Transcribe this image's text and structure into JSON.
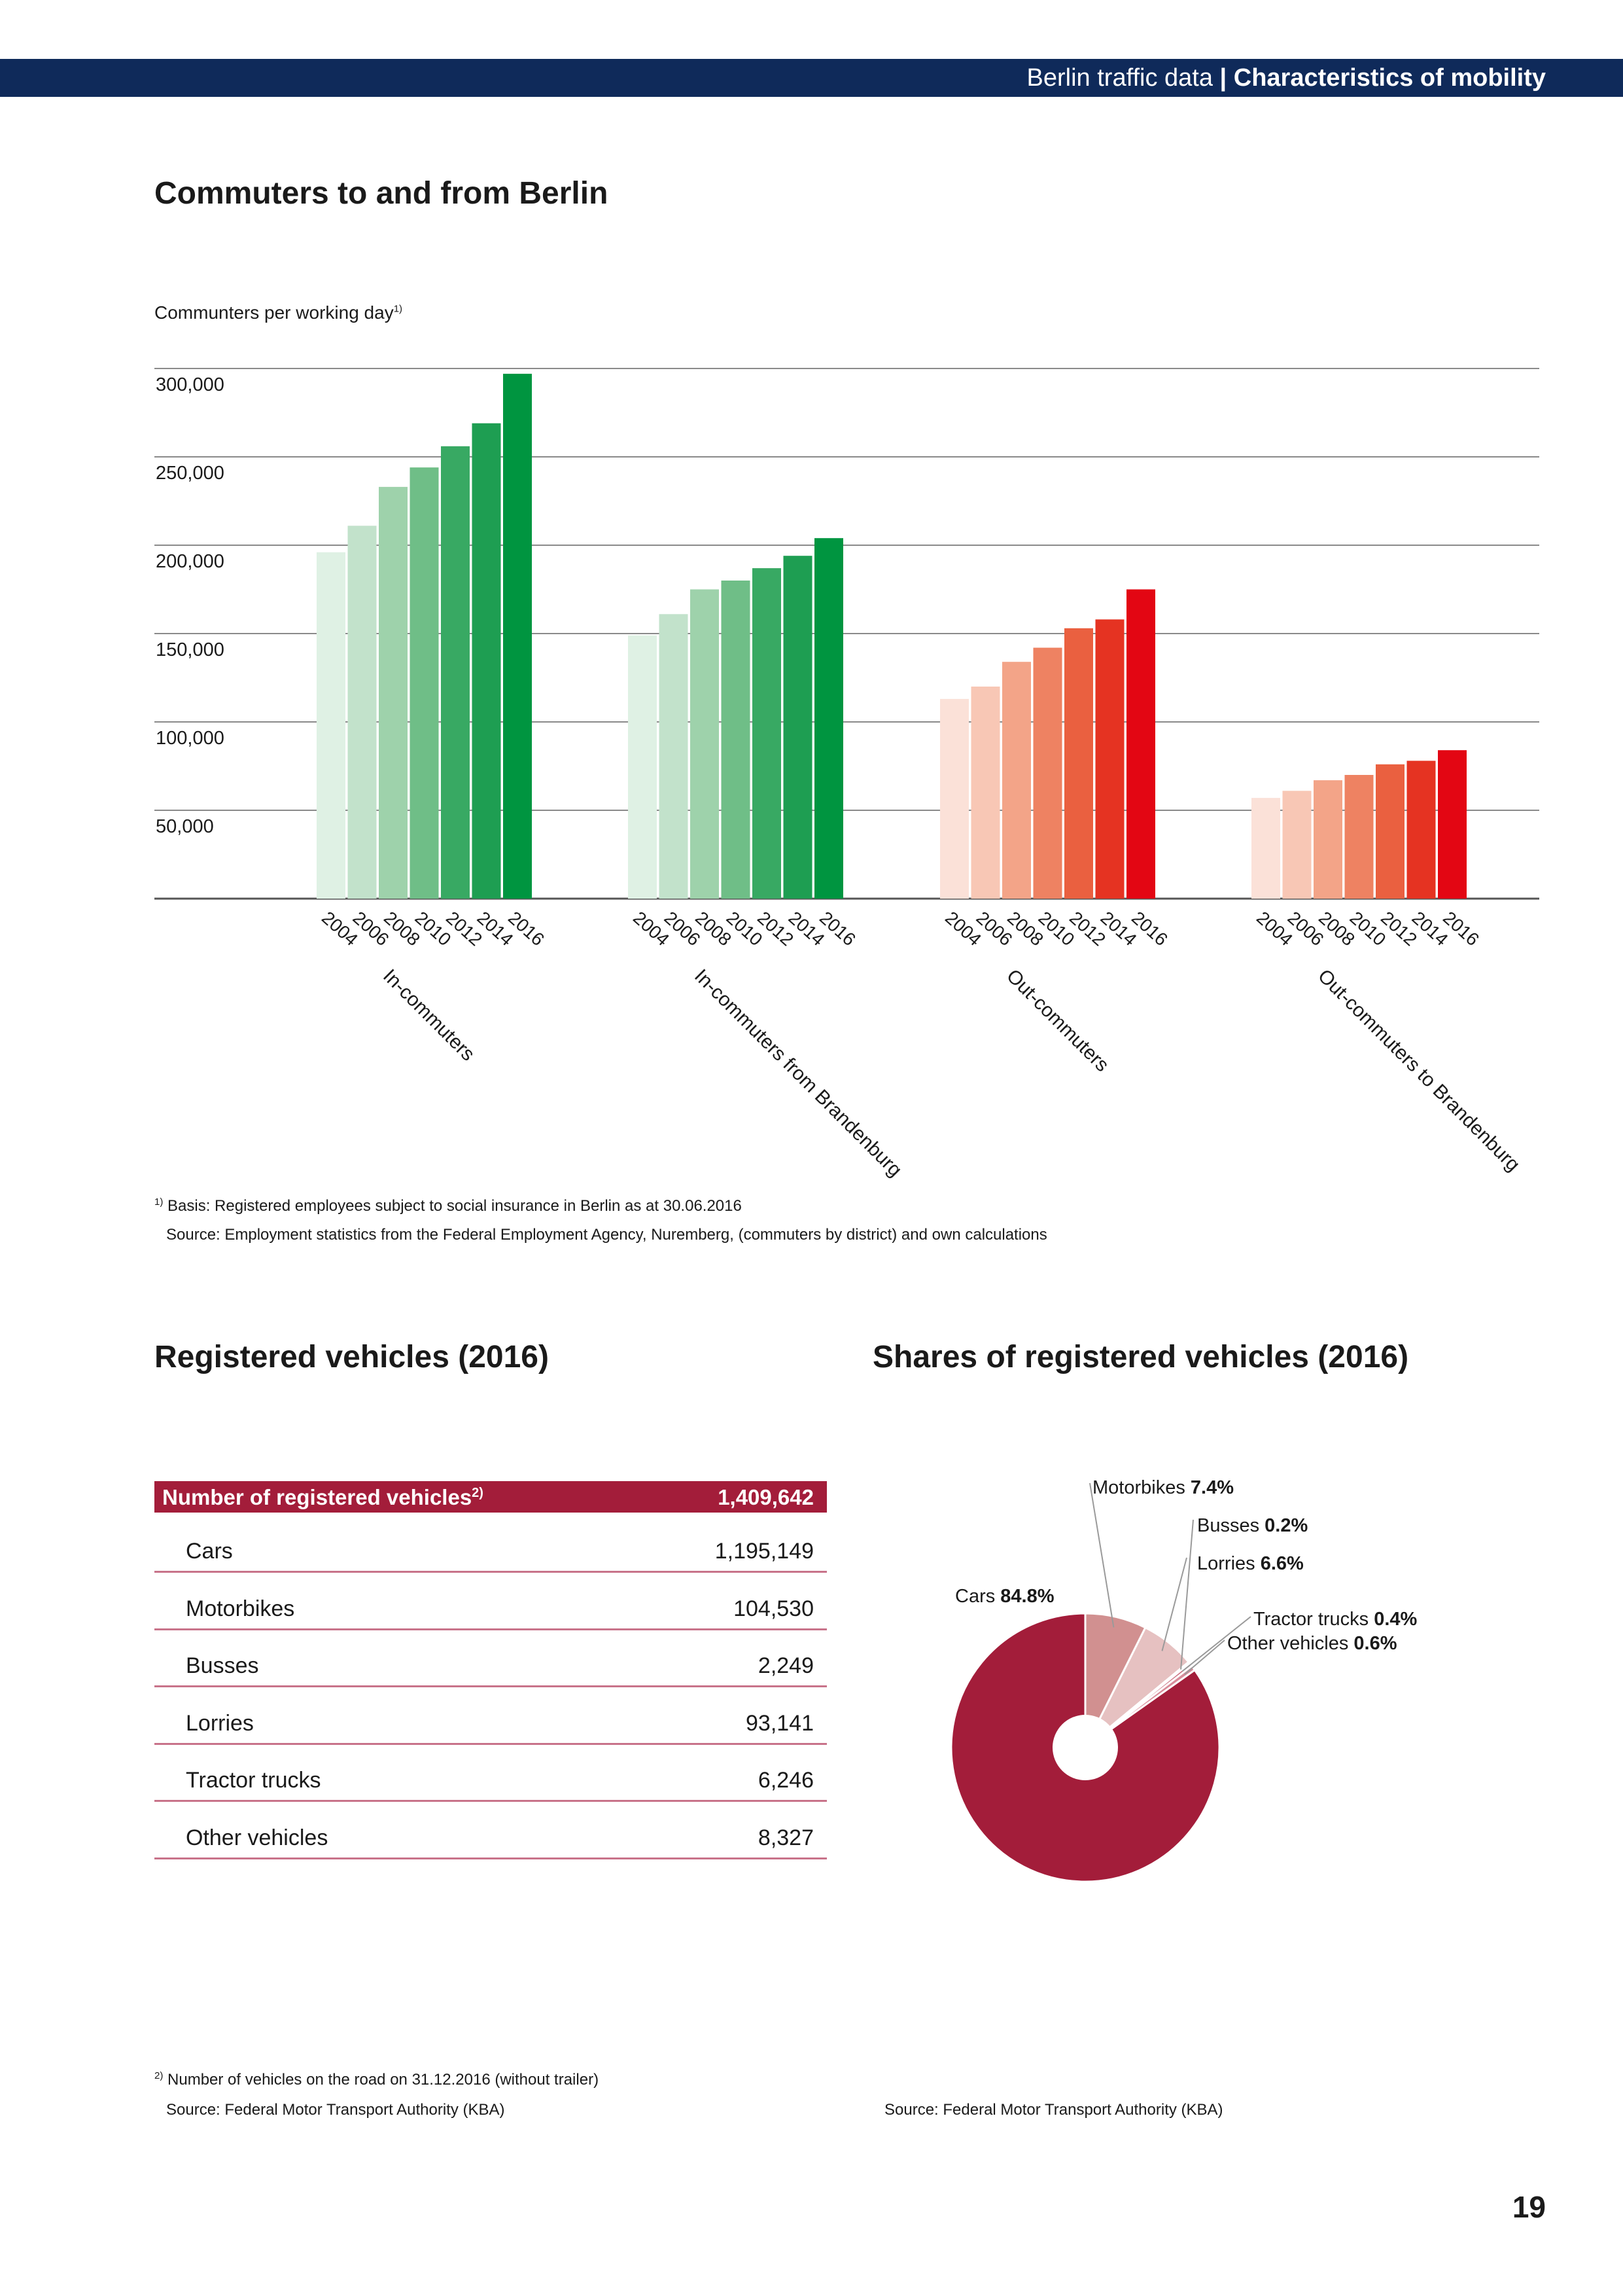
{
  "header": {
    "section": "Berlin traffic data",
    "separator": "|",
    "chapter": "Characteristics of mobility"
  },
  "commuters": {
    "title": "Commuters to and from Berlin",
    "axis_label": "Communters per working day",
    "axis_label_note": "1)",
    "footnote_mark": "1)",
    "footnote": "Basis: Registered employees subject to social insurance in Berlin as at 30.06.2016",
    "source": "Source: Employment statistics from the Federal Employment Agency, Nuremberg, (commuters by district) and own calculations"
  },
  "vehicles_table": {
    "title": "Registered vehicles (2016)",
    "header_label": "Number of registered vehicles",
    "header_note": "2)",
    "header_value": "1,409,642",
    "rows": [
      {
        "label": "Cars",
        "value": "1,195,149"
      },
      {
        "label": "Motorbikes",
        "value": "104,530"
      },
      {
        "label": "Busses",
        "value": "2,249"
      },
      {
        "label": "Lorries",
        "value": "93,141"
      },
      {
        "label": "Tractor trucks",
        "value": "6,246"
      },
      {
        "label": "Other vehicles",
        "value": "8,327"
      }
    ],
    "footnote_mark": "2)",
    "footnote": "Number of vehicles on the road on 31.12.2016 (without trailer)",
    "source": "Source: Federal Motor Transport Authority (KBA)"
  },
  "shares": {
    "title": "Shares of registered vehicles (2016)",
    "source": "Source: Federal Motor Transport Authority (KBA)"
  },
  "page_number": "19",
  "chart_data": [
    {
      "type": "bar",
      "ylim": [
        0,
        300000
      ],
      "yticks": [
        "50,000",
        "100,000",
        "150,000",
        "200,000",
        "250,000",
        "300,000"
      ],
      "ytick_values": [
        50000,
        100000,
        150000,
        200000,
        250000,
        300000
      ],
      "ylabel": "Communters per working day",
      "grid": true,
      "categories": [
        "2004",
        "2006",
        "2008",
        "2010",
        "2012",
        "2014",
        "2016"
      ],
      "groups": [
        {
          "name": "In-commuters",
          "values": [
            196000,
            211000,
            233000,
            244000,
            256000,
            269000,
            297000
          ],
          "colors": [
            "#dff1e4",
            "#c2e2cb",
            "#9ed2ab",
            "#6fbe87",
            "#38a963",
            "#1e9e52",
            "#009540"
          ]
        },
        {
          "name": "In-commuters from Brandenburg",
          "values": [
            149000,
            161000,
            175000,
            180000,
            187000,
            194000,
            204000
          ],
          "colors": [
            "#dff1e4",
            "#c2e2cb",
            "#9ed2ab",
            "#6fbe87",
            "#38a963",
            "#1e9e52",
            "#009540"
          ]
        },
        {
          "name": "Out-commuters",
          "values": [
            113000,
            120000,
            134000,
            142000,
            153000,
            158000,
            175000
          ],
          "colors": [
            "#fbe1d8",
            "#f8c7b5",
            "#f3a488",
            "#ee8262",
            "#ea6040",
            "#e53322",
            "#e30613"
          ]
        },
        {
          "name": "Out-commuters to Brandenburg",
          "values": [
            57000,
            61000,
            67000,
            70000,
            76000,
            78000,
            84000
          ],
          "colors": [
            "#fbe1d8",
            "#f8c7b5",
            "#f3a488",
            "#ee8262",
            "#ea6040",
            "#e53322",
            "#e30613"
          ]
        }
      ]
    },
    {
      "type": "pie",
      "slices": [
        {
          "label": "Motorbikes",
          "value": 7.4,
          "value_label": "7.4%",
          "color": "#d19090"
        },
        {
          "label": "Lorries",
          "value": 6.6,
          "value_label": "6.6%",
          "color": "#e6c1c1"
        },
        {
          "label": "Busses",
          "value": 0.2,
          "value_label": "0.2%",
          "color": "#b3485e"
        },
        {
          "label": "Tractor trucks",
          "value": 0.4,
          "value_label": "0.4%",
          "color": "#c86a7c"
        },
        {
          "label": "Other vehicles",
          "value": 0.6,
          "value_label": "0.6%",
          "color": "#d88c9a"
        },
        {
          "label": "Cars",
          "value": 84.8,
          "value_label": "84.8%",
          "color": "#a31d3a"
        }
      ]
    }
  ]
}
